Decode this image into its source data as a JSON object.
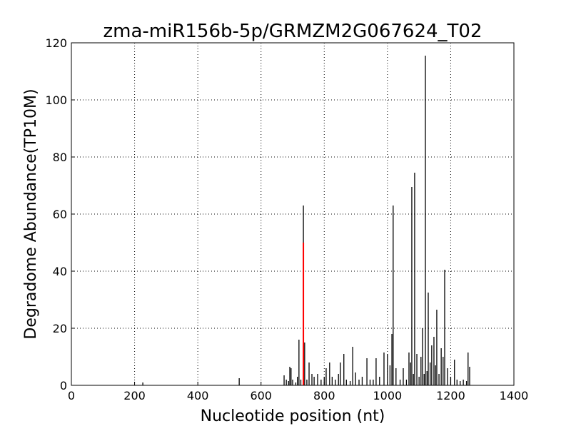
{
  "chart_data": {
    "type": "stem",
    "title": "zma-miR156b-5p/GRMZM2G067624_T02",
    "xlabel": "Nucleotide position (nt)",
    "ylabel": "Degradome Abundance(TP10M)",
    "xlim": [
      0,
      1400
    ],
    "xticks": [
      0,
      200,
      400,
      600,
      800,
      1000,
      1200,
      1400
    ],
    "ylim": [
      0,
      120
    ],
    "yticks": [
      0,
      20,
      40,
      60,
      80,
      100,
      120
    ],
    "grid": true,
    "series": [
      {
        "color": "#000000",
        "x": [
          226,
          531,
          673,
          680,
          687,
          691,
          695,
          700,
          710,
          715,
          720,
          726,
          734,
          738,
          745,
          752,
          761,
          768,
          779,
          790,
          800,
          806,
          817,
          825,
          835,
          845,
          851,
          862,
          870,
          882,
          890,
          899,
          910,
          920,
          935,
          945,
          955,
          964,
          975,
          989,
          1000,
          1008,
          1014,
          1018,
          1027,
          1040,
          1050,
          1060,
          1068,
          1073,
          1077,
          1082,
          1086,
          1093,
          1100,
          1106,
          1111,
          1116,
          1120,
          1125,
          1129,
          1135,
          1140,
          1147,
          1152,
          1156,
          1163,
          1170,
          1176,
          1181,
          1190,
          1200,
          1212,
          1220,
          1230,
          1240,
          1250,
          1255,
          1260
        ],
        "values": [
          1,
          2.5,
          3.5,
          2,
          1.5,
          6.5,
          6,
          2,
          1,
          3,
          16,
          2,
          63,
          15,
          2,
          8,
          4,
          3,
          4,
          2,
          3,
          6,
          8,
          3,
          2,
          4,
          8,
          11,
          2,
          1.5,
          13.5,
          4.5,
          2,
          3,
          9.5,
          2,
          2,
          9.5,
          3,
          11.5,
          11,
          7,
          18,
          63,
          6,
          2,
          6,
          2,
          11.5,
          8,
          69.5,
          4,
          74.5,
          11,
          3,
          10,
          20,
          4,
          115.5,
          5,
          32.5,
          8,
          14,
          17,
          7,
          26.5,
          4,
          13,
          10,
          40.5,
          6,
          3,
          9,
          2,
          1.5,
          2,
          1.5,
          11.5,
          6.5
        ]
      },
      {
        "color": "#ff0000",
        "x": [
          734
        ],
        "values": [
          50
        ]
      }
    ]
  }
}
